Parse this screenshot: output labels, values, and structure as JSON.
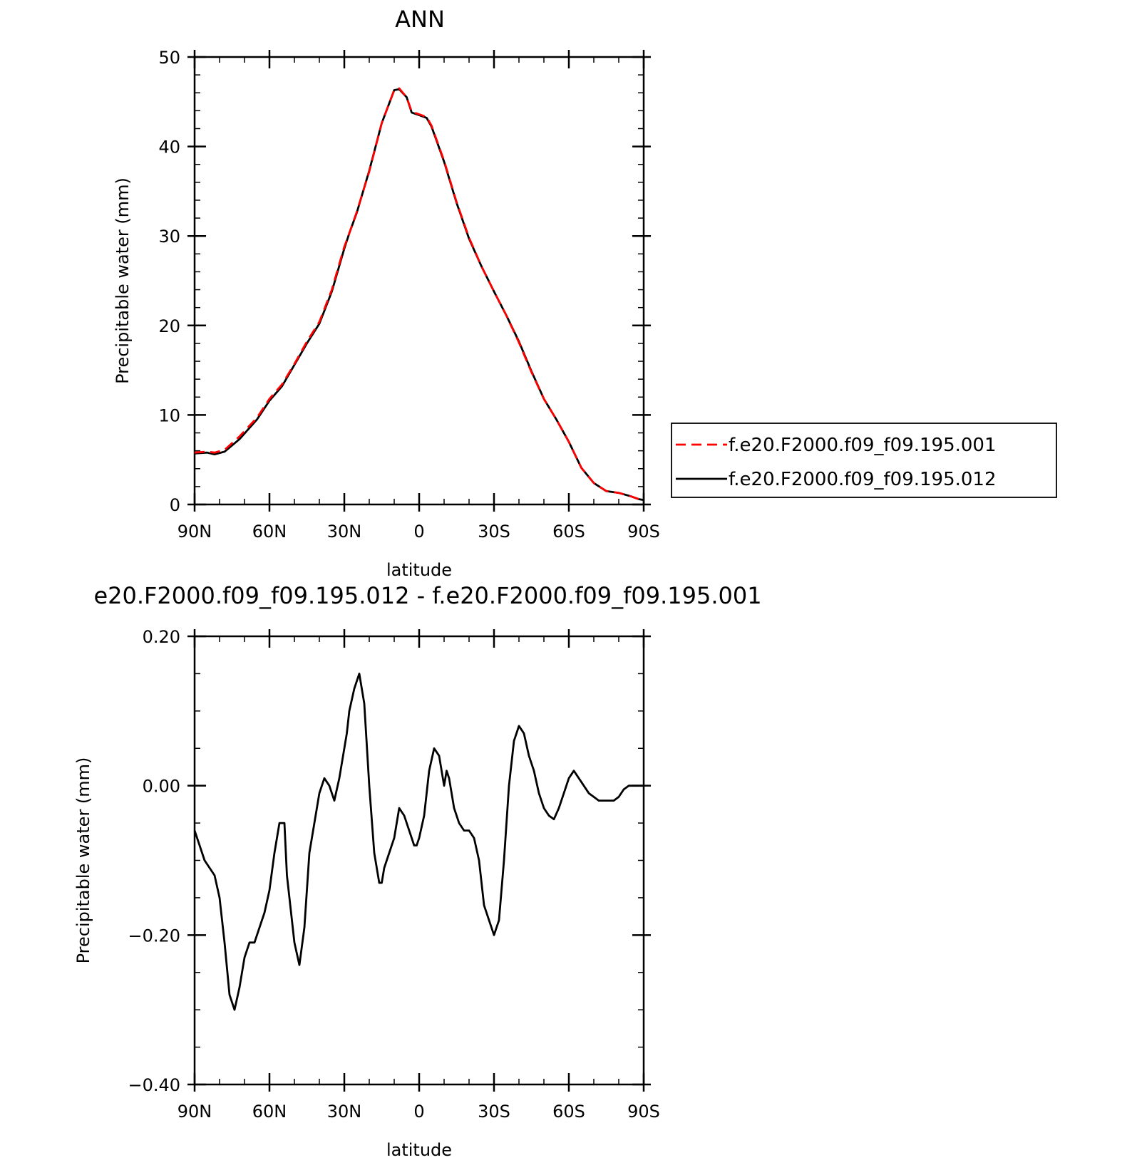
{
  "chart_data": [
    {
      "type": "line",
      "title": "ANN",
      "xlabel": "latitude",
      "ylabel": "Precipitable water (mm)",
      "xlim": [
        90,
        -90
      ],
      "ylim": [
        0,
        50
      ],
      "xtick_values": [
        90,
        60,
        30,
        0,
        -30,
        -60,
        -90
      ],
      "xtick_labels": [
        "90N",
        "60N",
        "30N",
        "0",
        "30S",
        "60S",
        "90S"
      ],
      "ytick_values": [
        0,
        10,
        20,
        30,
        40,
        50
      ],
      "ytick_labels": [
        "0",
        "10",
        "20",
        "30",
        "40",
        "50"
      ],
      "legend_position": "right",
      "series": [
        {
          "name": "f.e20.F2000.f09_f09.195.001",
          "color": "#ff0000",
          "dash": "dashed",
          "x": [
            90,
            85,
            82,
            78,
            72,
            65,
            60,
            55,
            50,
            45,
            40,
            35,
            30,
            28,
            25,
            20,
            15,
            10,
            8,
            5,
            3,
            0,
            -3,
            -5,
            -10,
            -15,
            -20,
            -25,
            -30,
            -35,
            -40,
            -45,
            -50,
            -55,
            -60,
            -65,
            -70,
            -75,
            -80,
            -85,
            -88,
            -90
          ],
          "y": [
            5.8,
            5.9,
            5.8,
            6.1,
            7.6,
            9.7,
            11.8,
            13.4,
            15.7,
            18.2,
            20.4,
            24.0,
            28.8,
            30.3,
            32.7,
            37.2,
            42.6,
            46.3,
            46.5,
            45.5,
            43.9,
            43.6,
            43.3,
            42.3,
            38.4,
            33.8,
            29.8,
            26.6,
            23.8,
            21.1,
            18.1,
            14.8,
            11.8,
            9.5,
            7.0,
            4.1,
            2.4,
            1.5,
            1.3,
            0.9,
            0.6,
            0.5
          ]
        },
        {
          "name": "f.e20.F2000.f09_f09.195.012",
          "color": "#000000",
          "dash": "solid",
          "x": [
            90,
            85,
            82,
            78,
            72,
            65,
            60,
            55,
            50,
            45,
            40,
            35,
            30,
            28,
            25,
            20,
            15,
            10,
            8,
            5,
            3,
            0,
            -3,
            -5,
            -10,
            -15,
            -20,
            -25,
            -30,
            -35,
            -40,
            -45,
            -50,
            -55,
            -60,
            -65,
            -70,
            -75,
            -80,
            -85,
            -88,
            -90
          ],
          "y": [
            5.7,
            5.8,
            5.6,
            5.9,
            7.3,
            9.5,
            11.6,
            13.2,
            15.6,
            18.0,
            20.2,
            23.8,
            28.6,
            30.3,
            32.6,
            37.3,
            42.6,
            46.3,
            46.4,
            45.5,
            43.8,
            43.5,
            43.2,
            42.2,
            38.3,
            33.7,
            29.7,
            26.6,
            23.8,
            21.1,
            18.2,
            14.9,
            11.8,
            9.5,
            7.0,
            4.1,
            2.4,
            1.5,
            1.3,
            0.9,
            0.6,
            0.5
          ]
        }
      ]
    },
    {
      "type": "line",
      "title": "e20.F2000.f09_f09.195.012 - f.e20.F2000.f09_f09.195.001",
      "xlabel": "latitude",
      "ylabel": "Precipitable water (mm)",
      "xlim": [
        90,
        -90
      ],
      "ylim": [
        -0.4,
        0.2
      ],
      "xtick_values": [
        90,
        60,
        30,
        0,
        -30,
        -60,
        -90
      ],
      "xtick_labels": [
        "90N",
        "60N",
        "30N",
        "0",
        "30S",
        "60S",
        "90S"
      ],
      "ytick_values": [
        0.2,
        0.0,
        -0.2,
        -0.4
      ],
      "ytick_labels": [
        "0.20",
        "0.00",
        "−0.20",
        "−0.40"
      ],
      "series": [
        {
          "color": "#000000",
          "dash": "solid",
          "x": [
            90,
            88,
            86,
            84,
            82,
            80,
            78,
            76,
            74,
            72,
            71,
            70,
            68,
            66,
            64,
            62,
            60,
            58,
            56,
            54,
            53,
            52,
            50,
            48,
            46,
            44,
            42,
            40,
            38,
            36,
            34,
            32,
            30,
            29,
            28,
            26,
            24,
            22,
            20,
            18,
            16,
            15,
            14,
            12,
            10,
            9,
            8,
            6,
            4,
            2,
            1,
            0,
            -2,
            -4,
            -6,
            -8,
            -10,
            -11,
            -12,
            -14,
            -16,
            -18,
            -20,
            -22,
            -24,
            -26,
            -28,
            -29,
            -30,
            -32,
            -34,
            -36,
            -38,
            -40,
            -42,
            -44,
            -46,
            -48,
            -50,
            -52,
            -54,
            -56,
            -58,
            -60,
            -62,
            -64,
            -66,
            -68,
            -70,
            -72,
            -74,
            -76,
            -78,
            -80,
            -82,
            -84,
            -86,
            -88,
            -90
          ],
          "y": [
            -0.06,
            -0.08,
            -0.1,
            -0.11,
            -0.12,
            -0.15,
            -0.21,
            -0.28,
            -0.3,
            -0.27,
            -0.25,
            -0.23,
            -0.21,
            -0.21,
            -0.19,
            -0.17,
            -0.14,
            -0.09,
            -0.05,
            -0.05,
            -0.12,
            -0.15,
            -0.21,
            -0.24,
            -0.19,
            -0.09,
            -0.05,
            -0.01,
            0.01,
            0.0,
            -0.02,
            0.01,
            0.05,
            0.07,
            0.1,
            0.13,
            0.15,
            0.11,
            0.0,
            -0.09,
            -0.13,
            -0.13,
            -0.11,
            -0.09,
            -0.07,
            -0.05,
            -0.03,
            -0.04,
            -0.06,
            -0.08,
            -0.08,
            -0.07,
            -0.04,
            0.02,
            0.05,
            0.04,
            0.0,
            0.02,
            0.01,
            -0.03,
            -0.05,
            -0.06,
            -0.06,
            -0.07,
            -0.1,
            -0.16,
            -0.18,
            -0.19,
            -0.2,
            -0.18,
            -0.1,
            0.0,
            0.06,
            0.08,
            0.07,
            0.04,
            0.02,
            -0.01,
            -0.03,
            -0.04,
            -0.045,
            -0.03,
            -0.01,
            0.01,
            0.02,
            0.01,
            0.0,
            -0.01,
            -0.015,
            -0.02,
            -0.02,
            -0.02,
            -0.02,
            -0.015,
            -0.005,
            0.0,
            0.0,
            0.0,
            0.0
          ]
        }
      ]
    }
  ]
}
